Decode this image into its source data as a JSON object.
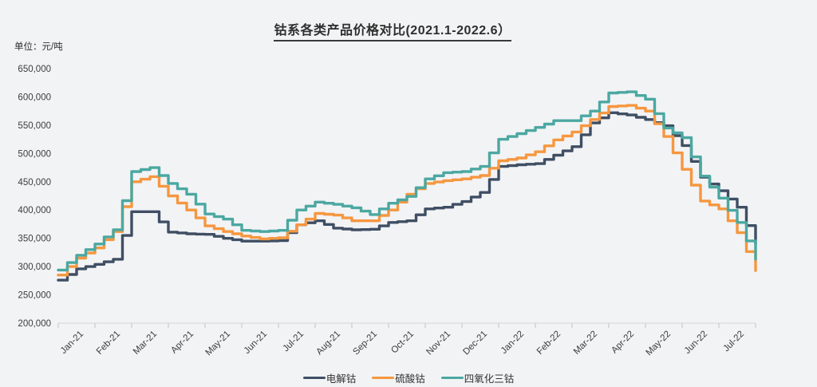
{
  "page": {
    "background": "#f2f3f5"
  },
  "chart_data": {
    "type": "line",
    "title": "钴系各类产品价格对比(2021.1-2022.6）",
    "unit_label": "单位：元/吨",
    "x_labels": [
      "Jan-21",
      "Feb-21",
      "Mar-21",
      "Apr-21",
      "May-21",
      "Jun-21",
      "Jul-21",
      "Aug-21",
      "Sep-21",
      "Oct-21",
      "Nov-21",
      "Dec-21",
      "Jan-22",
      "Feb-22",
      "Mar-22",
      "Apr-22",
      "May-22",
      "Jun-22",
      "Jul-22"
    ],
    "points_per_month": 2,
    "y_ticks": [
      200000,
      250000,
      300000,
      350000,
      400000,
      450000,
      500000,
      550000,
      600000,
      650000
    ],
    "y_range": [
      200000,
      650000
    ],
    "grid": "none",
    "line_style": "step",
    "legend_position": "bottom-center",
    "series": [
      {
        "name": "电解钴",
        "color": "#3f4e63",
        "values": [
          276000,
          296000,
          304000,
          313000,
          397000,
          397000,
          361000,
          358000,
          357000,
          350000,
          345000,
          345000,
          346000,
          374000,
          381000,
          368000,
          365000,
          366000,
          378000,
          381000,
          402000,
          405000,
          415000,
          431000,
          477000,
          480000,
          482000,
          497000,
          512000,
          554000,
          572000,
          568000,
          560000,
          549000,
          514000,
          458000,
          434000,
          405000,
          340000
        ]
      },
      {
        "name": "硫酸钴",
        "color": "#f6973f",
        "values": [
          285000,
          315000,
          333000,
          362000,
          450000,
          459000,
          425000,
          400000,
          372000,
          362000,
          354000,
          349000,
          351000,
          374000,
          394000,
          391000,
          381000,
          381000,
          400000,
          428000,
          447000,
          452000,
          455000,
          461000,
          487000,
          492000,
          503000,
          524000,
          538000,
          560000,
          583000,
          585000,
          575000,
          530000,
          472000,
          416000,
          402000,
          360000,
          293000
        ]
      },
      {
        "name": "四氧化三钴",
        "color": "#4ba8a1",
        "values": [
          294000,
          320000,
          340000,
          365000,
          468000,
          475000,
          447000,
          428000,
          393000,
          384000,
          364000,
          362000,
          364000,
          400000,
          414000,
          410000,
          404000,
          392000,
          412000,
          424000,
          455000,
          466000,
          468000,
          477000,
          525000,
          535000,
          546000,
          558000,
          558000,
          575000,
          607000,
          609000,
          596000,
          545000,
          528000,
          460000,
          421000,
          378000,
          313000
        ]
      }
    ]
  }
}
